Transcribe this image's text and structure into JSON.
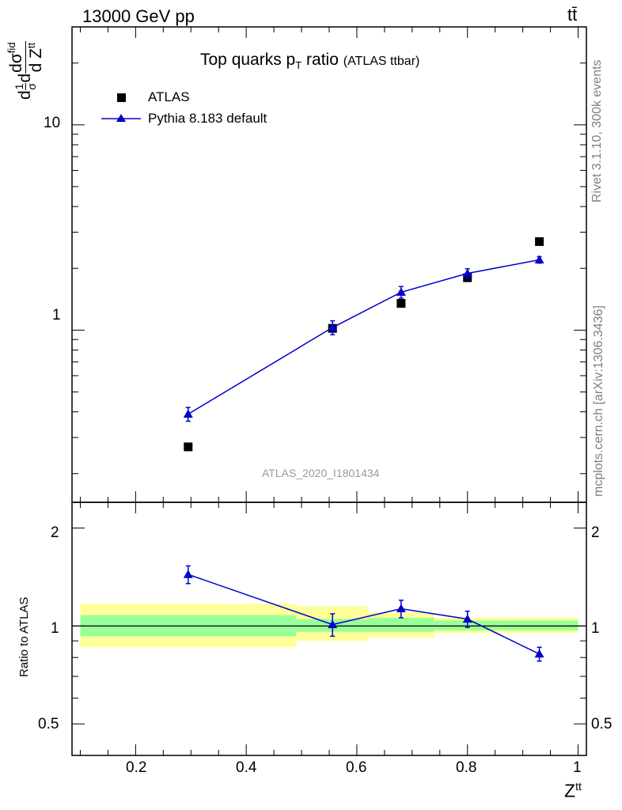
{
  "header": {
    "energy_label": "13000 GeV pp",
    "process_label": "tt̄"
  },
  "title": {
    "main": "Top quarks p",
    "sub": "T",
    "rest": " ratio",
    "small": "(ATLAS ttbar)"
  },
  "side_labels": {
    "rivet": "Rivet 3.1.10,  300k events",
    "mcplots": "mcplots.cern.ch [arXiv:1306.3436]"
  },
  "analysis_label": "ATLAS_2020_I1801434",
  "axes": {
    "ylabel_main": "d(1/σ dσ^fid)/d Z^tt",
    "ylabel_ratio": "Ratio to ATLAS",
    "xlabel": "Z",
    "xlabel_sup": "tt",
    "x_ticks": [
      "0.2",
      "0.4",
      "0.6",
      "0.8",
      "1"
    ],
    "y_main_ticks": [
      "1",
      "10"
    ],
    "y_ratio_ticks": [
      "0.5",
      "1",
      "2"
    ]
  },
  "colors": {
    "mc": "#0000cc",
    "data": "#000000",
    "band_inner": "#99ff99",
    "band_outer": "#ffff99"
  },
  "chart_data": {
    "type": "scatter",
    "title": "Top quarks pT ratio (ATLAS ttbar)",
    "xlabel": "Z^tt",
    "ylabel": "1/σ dσ^fid / d Z^tt",
    "xlim": [
      0.085,
      1.015
    ],
    "ylim_main": [
      0.145,
      30
    ],
    "ylim_ratio": [
      0.4,
      2.4
    ],
    "yscale": "log",
    "legend_position": "top-left",
    "series": [
      {
        "name": "ATLAS",
        "marker": "square",
        "x": [
          0.295,
          0.556,
          0.68,
          0.8,
          0.93
        ],
        "y": [
          0.27,
          1.02,
          1.35,
          1.8,
          2.7
        ]
      },
      {
        "name": "Pythia 8.183 default",
        "marker": "triangle",
        "x": [
          0.295,
          0.556,
          0.68,
          0.8,
          0.93
        ],
        "y": [
          0.39,
          1.03,
          1.53,
          1.89,
          2.2
        ],
        "yerr": [
          0.03,
          0.08,
          0.1,
          0.1,
          0.08
        ]
      }
    ],
    "ratio": {
      "ylabel": "Ratio to ATLAS",
      "mc_x": [
        0.295,
        0.556,
        0.68,
        0.8,
        0.93
      ],
      "mc_y": [
        1.44,
        1.01,
        1.13,
        1.05,
        0.82
      ],
      "mc_yerr": [
        0.09,
        0.08,
        0.07,
        0.06,
        0.04
      ],
      "bands": [
        {
          "x0": 0.1,
          "x1": 0.49,
          "inner": [
            0.93,
            1.08
          ],
          "outer": [
            0.86,
            1.17
          ]
        },
        {
          "x0": 0.49,
          "x1": 0.62,
          "inner": [
            0.96,
            1.05
          ],
          "outer": [
            0.9,
            1.15
          ]
        },
        {
          "x0": 0.62,
          "x1": 0.74,
          "inner": [
            0.96,
            1.06
          ],
          "outer": [
            0.92,
            1.1
          ]
        },
        {
          "x0": 0.74,
          "x1": 0.86,
          "inner": [
            0.97,
            1.04
          ],
          "outer": [
            0.95,
            1.06
          ]
        },
        {
          "x0": 0.86,
          "x1": 1.0,
          "inner": [
            0.97,
            1.04
          ],
          "outer": [
            0.95,
            1.06
          ]
        }
      ]
    }
  }
}
